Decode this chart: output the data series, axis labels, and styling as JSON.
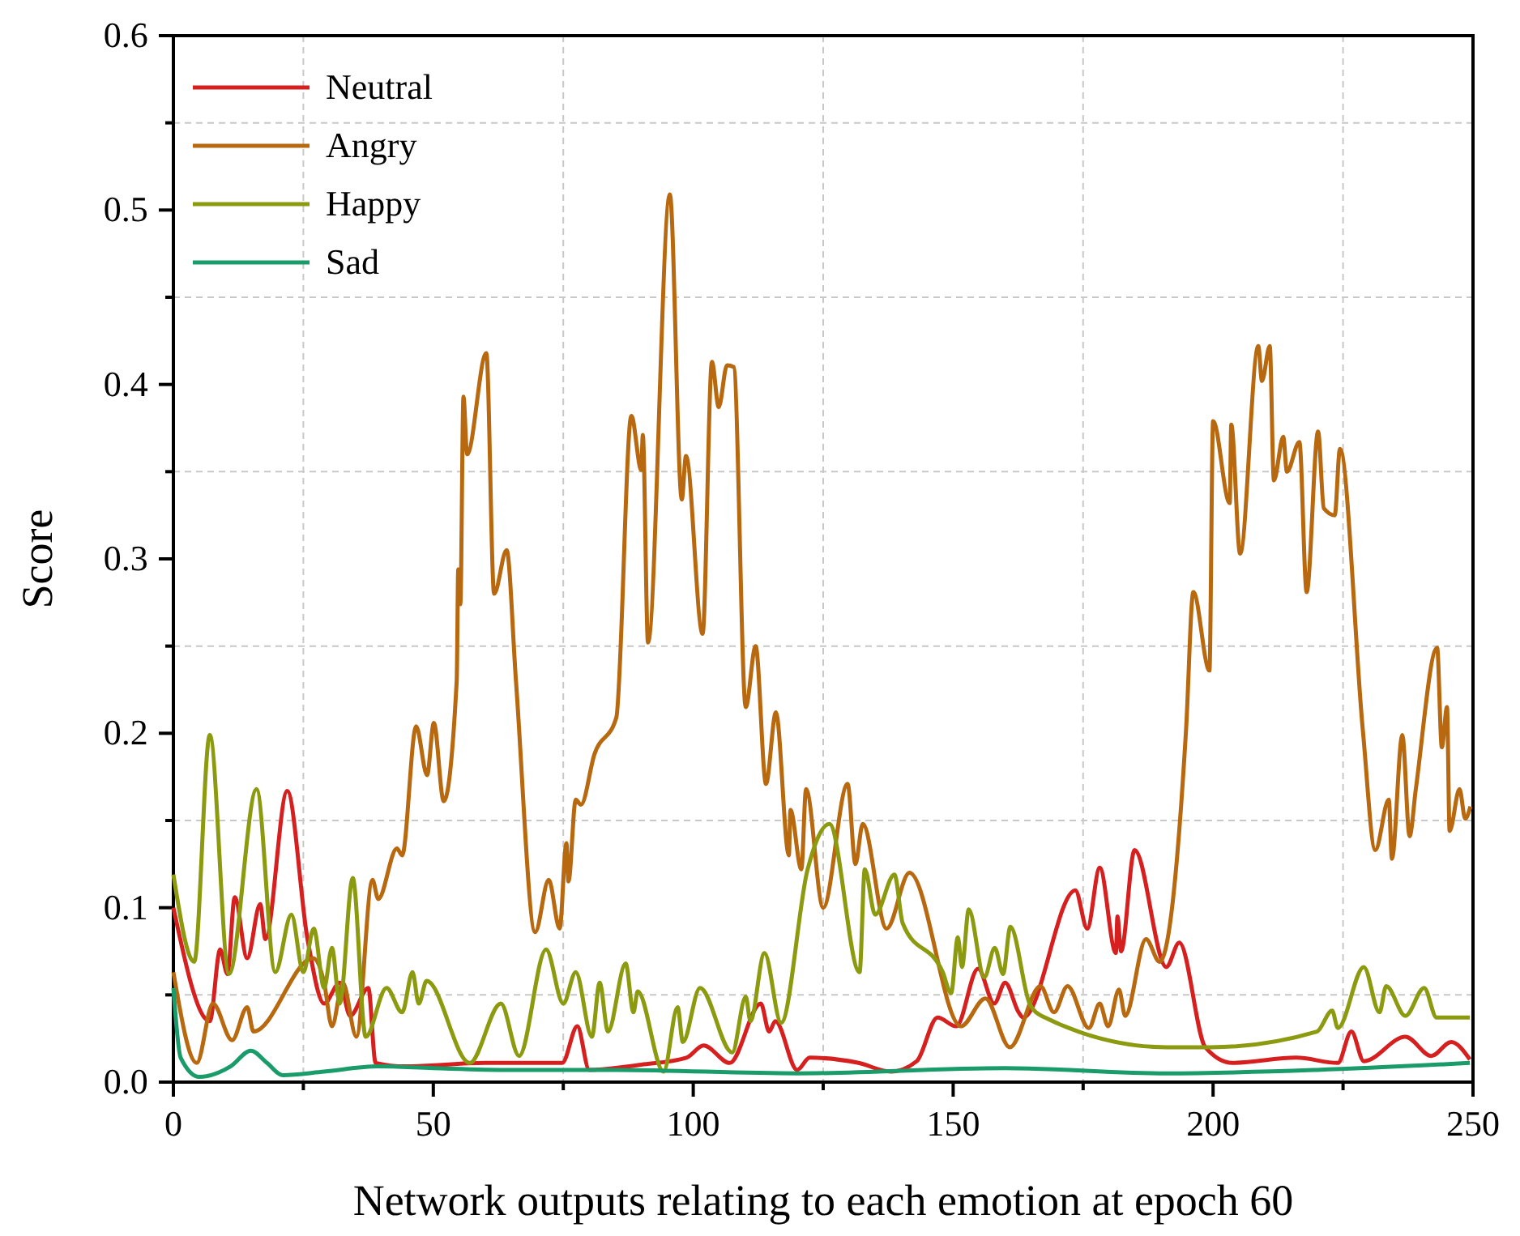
{
  "chart_data": {
    "type": "line",
    "xlabel": "Network outputs relating to each emotion at epoch 60",
    "ylabel": "Score",
    "xlim": [
      0,
      250
    ],
    "ylim": [
      0,
      0.6
    ],
    "xticks": [
      0,
      {
        "value": 25,
        "label": null
      },
      50,
      {
        "value": 75,
        "label": null
      },
      100,
      {
        "value": 125,
        "label": null
      },
      150,
      {
        "value": 175,
        "label": null
      },
      200,
      {
        "value": 225,
        "label": null
      },
      250
    ],
    "yticks": [
      {
        "value": 0,
        "label": "0.0"
      },
      {
        "value": 0.05,
        "label": null
      },
      {
        "value": 0.1,
        "label": "0.1"
      },
      {
        "value": 0.15,
        "label": null
      },
      {
        "value": 0.2,
        "label": "0.2"
      },
      {
        "value": 0.25,
        "label": null
      },
      {
        "value": 0.3,
        "label": "0.3"
      },
      {
        "value": 0.35,
        "label": null
      },
      {
        "value": 0.4,
        "label": "0.4"
      },
      {
        "value": 0.45,
        "label": null
      },
      {
        "value": 0.5,
        "label": "0.5"
      },
      {
        "value": 0.55,
        "label": null
      },
      {
        "value": 0.6,
        "label": "0.6"
      }
    ],
    "grid": true,
    "legend": "top left",
    "marker": "none",
    "line_style": "solid",
    "series": [
      {
        "name": "Neutral",
        "color": "#d62020",
        "x": [
          0,
          7,
          9,
          10.4,
          11.8,
          14.2,
          16.7,
          17.7,
          21.9,
          25.8,
          29,
          32,
          34,
          37.5,
          38.9,
          44.6,
          60,
          74.8,
          77.7,
          80,
          90,
          98.7,
          102,
          107,
          113,
          114.6,
          115.8,
          120,
          122.4,
          131.8,
          138,
          143,
          147,
          150.6,
          154.8,
          157.9,
          160,
          162.6,
          163.5,
          173.5,
          175.8,
          178.2,
          181.3,
          181.6,
          182.3,
          184.9,
          191,
          193.5,
          198.5,
          203.7,
          216,
          224,
          226.6,
          229,
          237,
          242,
          245.8,
          249.4
        ],
        "values": [
          0.1,
          0.035,
          0.076,
          0.062,
          0.106,
          0.071,
          0.102,
          0.082,
          0.167,
          0.082,
          0.045,
          0.057,
          0.038,
          0.054,
          0.011,
          0.009,
          0.011,
          0.011,
          0.032,
          0.007,
          0.01,
          0.014,
          0.021,
          0.011,
          0.045,
          0.029,
          0.035,
          0.007,
          0.014,
          0.011,
          0.006,
          0.012,
          0.037,
          0.032,
          0.065,
          0.045,
          0.057,
          0.04,
          0.037,
          0.11,
          0.088,
          0.123,
          0.074,
          0.095,
          0.075,
          0.133,
          0.066,
          0.08,
          0.02,
          0.011,
          0.014,
          0.011,
          0.029,
          0.012,
          0.026,
          0.015,
          0.023,
          0.013
        ]
      },
      {
        "name": "Angry",
        "color": "#b8690f",
        "x": [
          0,
          4.5,
          7.6,
          11.3,
          14.2,
          15.4,
          26.9,
          29,
          30.5,
          32.6,
          35.2,
          38.3,
          39.4,
          43,
          44,
          46.7,
          48.8,
          50.1,
          52,
          54.5,
          54.8,
          55.2,
          55.8,
          56.5,
          60.2,
          61.7,
          64.1,
          65.9,
          69.6,
          72.2,
          74.3,
          75.6,
          76,
          77.4,
          78.4,
          81,
          85.2,
          88.1,
          90,
          90.3,
          91.3,
          95.5,
          97.8,
          98.6,
          101.8,
          103.6,
          104.9,
          106.5,
          107.8,
          110.1,
          112,
          114,
          115.9,
          118.4,
          118.7,
          120.8,
          121.7,
          125,
          129.7,
          131.2,
          132.6,
          137.2,
          141.6,
          151.5,
          156.2,
          160.9,
          166.8,
          169.4,
          172,
          176.1,
          178.2,
          179.8,
          181.9,
          183.1,
          187.1,
          189.7,
          194.8,
          196.2,
          199.3,
          200,
          203.2,
          203.5,
          205.2,
          208.7,
          209.4,
          210.9,
          211.7,
          213.5,
          214.2,
          216.6,
          218,
          220.2,
          221.3,
          223.4,
          224.4,
          228.8,
          231.2,
          233.8,
          234.4,
          236.4,
          237.8,
          239,
          243.1,
          244,
          245,
          245.5,
          247.4,
          248.5,
          249.5
        ],
        "values": [
          0.063,
          0.011,
          0.045,
          0.024,
          0.043,
          0.029,
          0.071,
          0.057,
          0.032,
          0.057,
          0.026,
          0.116,
          0.105,
          0.134,
          0.13,
          0.204,
          0.176,
          0.206,
          0.161,
          0.23,
          0.294,
          0.274,
          0.393,
          0.36,
          0.418,
          0.28,
          0.305,
          0.23,
          0.086,
          0.116,
          0.088,
          0.137,
          0.115,
          0.162,
          0.159,
          0.188,
          0.209,
          0.382,
          0.351,
          0.371,
          0.252,
          0.509,
          0.334,
          0.359,
          0.257,
          0.413,
          0.387,
          0.411,
          0.41,
          0.215,
          0.25,
          0.171,
          0.212,
          0.13,
          0.156,
          0.122,
          0.168,
          0.1,
          0.171,
          0.125,
          0.148,
          0.088,
          0.12,
          0.032,
          0.048,
          0.02,
          0.055,
          0.04,
          0.055,
          0.031,
          0.045,
          0.032,
          0.053,
          0.038,
          0.082,
          0.069,
          0.202,
          0.281,
          0.236,
          0.379,
          0.332,
          0.377,
          0.303,
          0.422,
          0.402,
          0.422,
          0.345,
          0.37,
          0.35,
          0.367,
          0.281,
          0.373,
          0.329,
          0.325,
          0.363,
          0.202,
          0.133,
          0.162,
          0.128,
          0.199,
          0.141,
          0.168,
          0.249,
          0.192,
          0.215,
          0.144,
          0.168,
          0.151,
          0.158
        ]
      },
      {
        "name": "Happy",
        "color": "#8c9a10",
        "x": [
          0,
          4,
          7,
          10.7,
          16,
          19.6,
          22.7,
          25,
          27,
          29,
          30.5,
          32,
          34.5,
          37,
          41,
          44,
          46,
          47.2,
          48.7,
          57,
          63,
          66.5,
          71.7,
          75,
          77.4,
          80.5,
          82,
          83.6,
          87,
          88.5,
          89.3,
          94.3,
          97,
          98,
          101.3,
          107.5,
          110.1,
          111,
          113.7,
          116.9,
          122,
          126.2,
          132,
          133,
          135,
          138.7,
          140.3,
          148,
          149.6,
          150.9,
          151.7,
          153,
          156,
          158,
          159.6,
          161,
          164.7,
          167,
          191,
          199.5,
          220,
          222.9,
          224,
          229,
          232,
          233.3,
          237,
          240.6,
          243,
          249.4
        ],
        "values": [
          0.119,
          0.069,
          0.199,
          0.062,
          0.168,
          0.063,
          0.096,
          0.063,
          0.088,
          0.054,
          0.077,
          0.045,
          0.117,
          0.026,
          0.054,
          0.04,
          0.063,
          0.045,
          0.058,
          0.011,
          0.045,
          0.015,
          0.076,
          0.045,
          0.063,
          0.026,
          0.057,
          0.029,
          0.068,
          0.04,
          0.052,
          0.006,
          0.043,
          0.023,
          0.054,
          0.017,
          0.049,
          0.035,
          0.074,
          0.034,
          0.122,
          0.148,
          0.063,
          0.122,
          0.096,
          0.119,
          0.091,
          0.063,
          0.051,
          0.083,
          0.066,
          0.099,
          0.06,
          0.077,
          0.062,
          0.089,
          0.045,
          0.038,
          0.02,
          0.02,
          0.029,
          0.041,
          0.031,
          0.066,
          0.04,
          0.055,
          0.038,
          0.054,
          0.037,
          0.037
        ]
      },
      {
        "name": "Sad",
        "color": "#1a9b6a",
        "x": [
          0,
          1.4,
          5,
          11,
          14.9,
          18,
          21,
          29,
          39.4,
          50,
          65,
          85,
          120,
          160,
          191,
          220,
          249.4
        ],
        "values": [
          0.054,
          0.014,
          0.003,
          0.009,
          0.018,
          0.011,
          0.004,
          0.006,
          0.009,
          0.008,
          0.007,
          0.007,
          0.005,
          0.008,
          0.005,
          0.007,
          0.011
        ]
      }
    ]
  }
}
